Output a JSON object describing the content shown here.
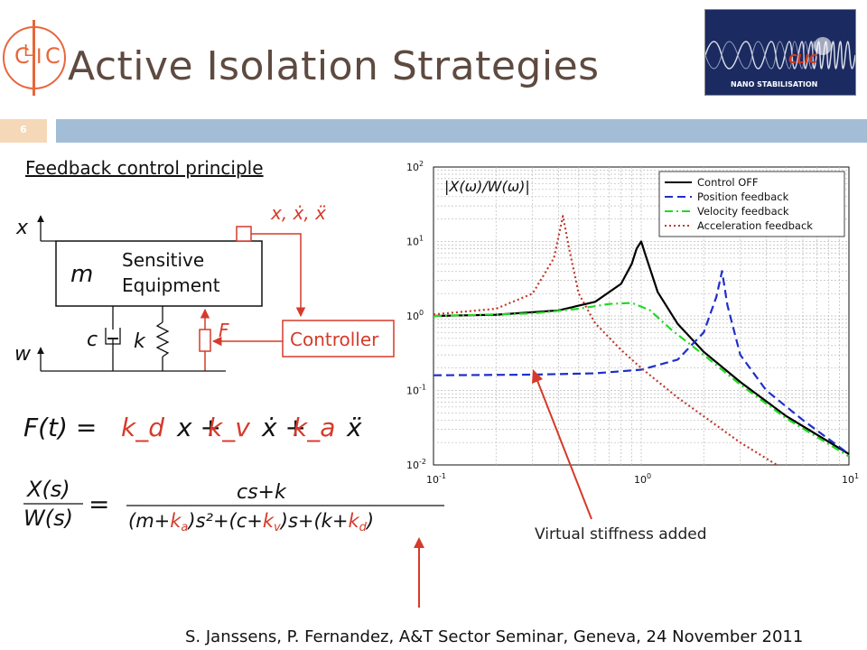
{
  "slide": {
    "title": "Active Isolation Strategies",
    "number": "6",
    "subheading": "Feedback control principle",
    "annotation": "Virtual stiffness added",
    "footer": "S. Janssens, P. Fernandez, A&T Sector Seminar, Geneva,  24 November 2011"
  },
  "logo": {
    "letters": [
      "C",
      "L",
      "I",
      "C"
    ],
    "color": "#e8663a"
  },
  "badge": {
    "clic": "CLIC",
    "text": "NANO STABILISATION"
  },
  "diagram": {
    "x_label": "x",
    "w_label": "w",
    "signals_label": "x, ẋ, ẍ",
    "mass_label": "m",
    "equipment_line1": "Sensitive",
    "equipment_line2": "Equipment",
    "damper_label": "c",
    "spring_label": "k",
    "force_label": "F",
    "controller_label": "Controller"
  },
  "equations": {
    "force_lhs": "F(t) =",
    "kd": "k_d",
    "kv": "k_v",
    "ka": "k_a",
    "tf_lhs_num": "X(s)",
    "tf_lhs_den": "W(s)",
    "tf_num": "cs+k"
  },
  "chart_data": {
    "type": "line",
    "xscale": "log",
    "yscale": "log",
    "xlim": [
      0.1,
      10
    ],
    "ylim": [
      0.01,
      100
    ],
    "x_ticks": [
      "10-1",
      "100",
      "101"
    ],
    "y_ticks": [
      "102",
      "101",
      "100",
      "10-1",
      "10-2"
    ],
    "grid": true,
    "legend_position": "top-right",
    "ylabel_text": "|X(ω)/W(ω)|",
    "series": [
      {
        "name": "Control OFF",
        "color": "#000000",
        "dash": "solid",
        "x": [
          0.1,
          0.2,
          0.4,
          0.6,
          0.8,
          0.9,
          0.95,
          1.0,
          1.05,
          1.2,
          1.5,
          2,
          3,
          5,
          10
        ],
        "y": [
          1.0,
          1.04,
          1.19,
          1.55,
          2.7,
          5.0,
          8.0,
          10.0,
          6.5,
          2.1,
          0.78,
          0.33,
          0.13,
          0.045,
          0.014
        ]
      },
      {
        "name": "Position feedback",
        "color": "#1f2fc9",
        "dash": "dashed",
        "x": [
          0.1,
          0.3,
          0.6,
          1.0,
          1.5,
          2.0,
          2.3,
          2.45,
          2.6,
          3,
          4,
          6,
          10
        ],
        "y": [
          0.16,
          0.163,
          0.17,
          0.19,
          0.26,
          0.6,
          1.8,
          4.0,
          1.4,
          0.3,
          0.1,
          0.04,
          0.014
        ]
      },
      {
        "name": "Velocity feedback",
        "color": "#22d922",
        "dash": "dashdot",
        "x": [
          0.1,
          0.3,
          0.5,
          0.7,
          0.9,
          1.1,
          1.4,
          2,
          3,
          5,
          10
        ],
        "y": [
          1.0,
          1.08,
          1.25,
          1.45,
          1.5,
          1.2,
          0.65,
          0.3,
          0.12,
          0.042,
          0.013
        ]
      },
      {
        "name": "Acceleration feedback",
        "color": "#c0392b",
        "dash": "dotted",
        "x": [
          0.1,
          0.2,
          0.3,
          0.38,
          0.42,
          0.45,
          0.5,
          0.6,
          0.8,
          1.0,
          1.5,
          2,
          3,
          4.5
        ],
        "y": [
          1.05,
          1.25,
          2.0,
          6.0,
          22.0,
          8.0,
          2.0,
          0.8,
          0.35,
          0.2,
          0.08,
          0.045,
          0.02,
          0.01
        ]
      }
    ]
  }
}
